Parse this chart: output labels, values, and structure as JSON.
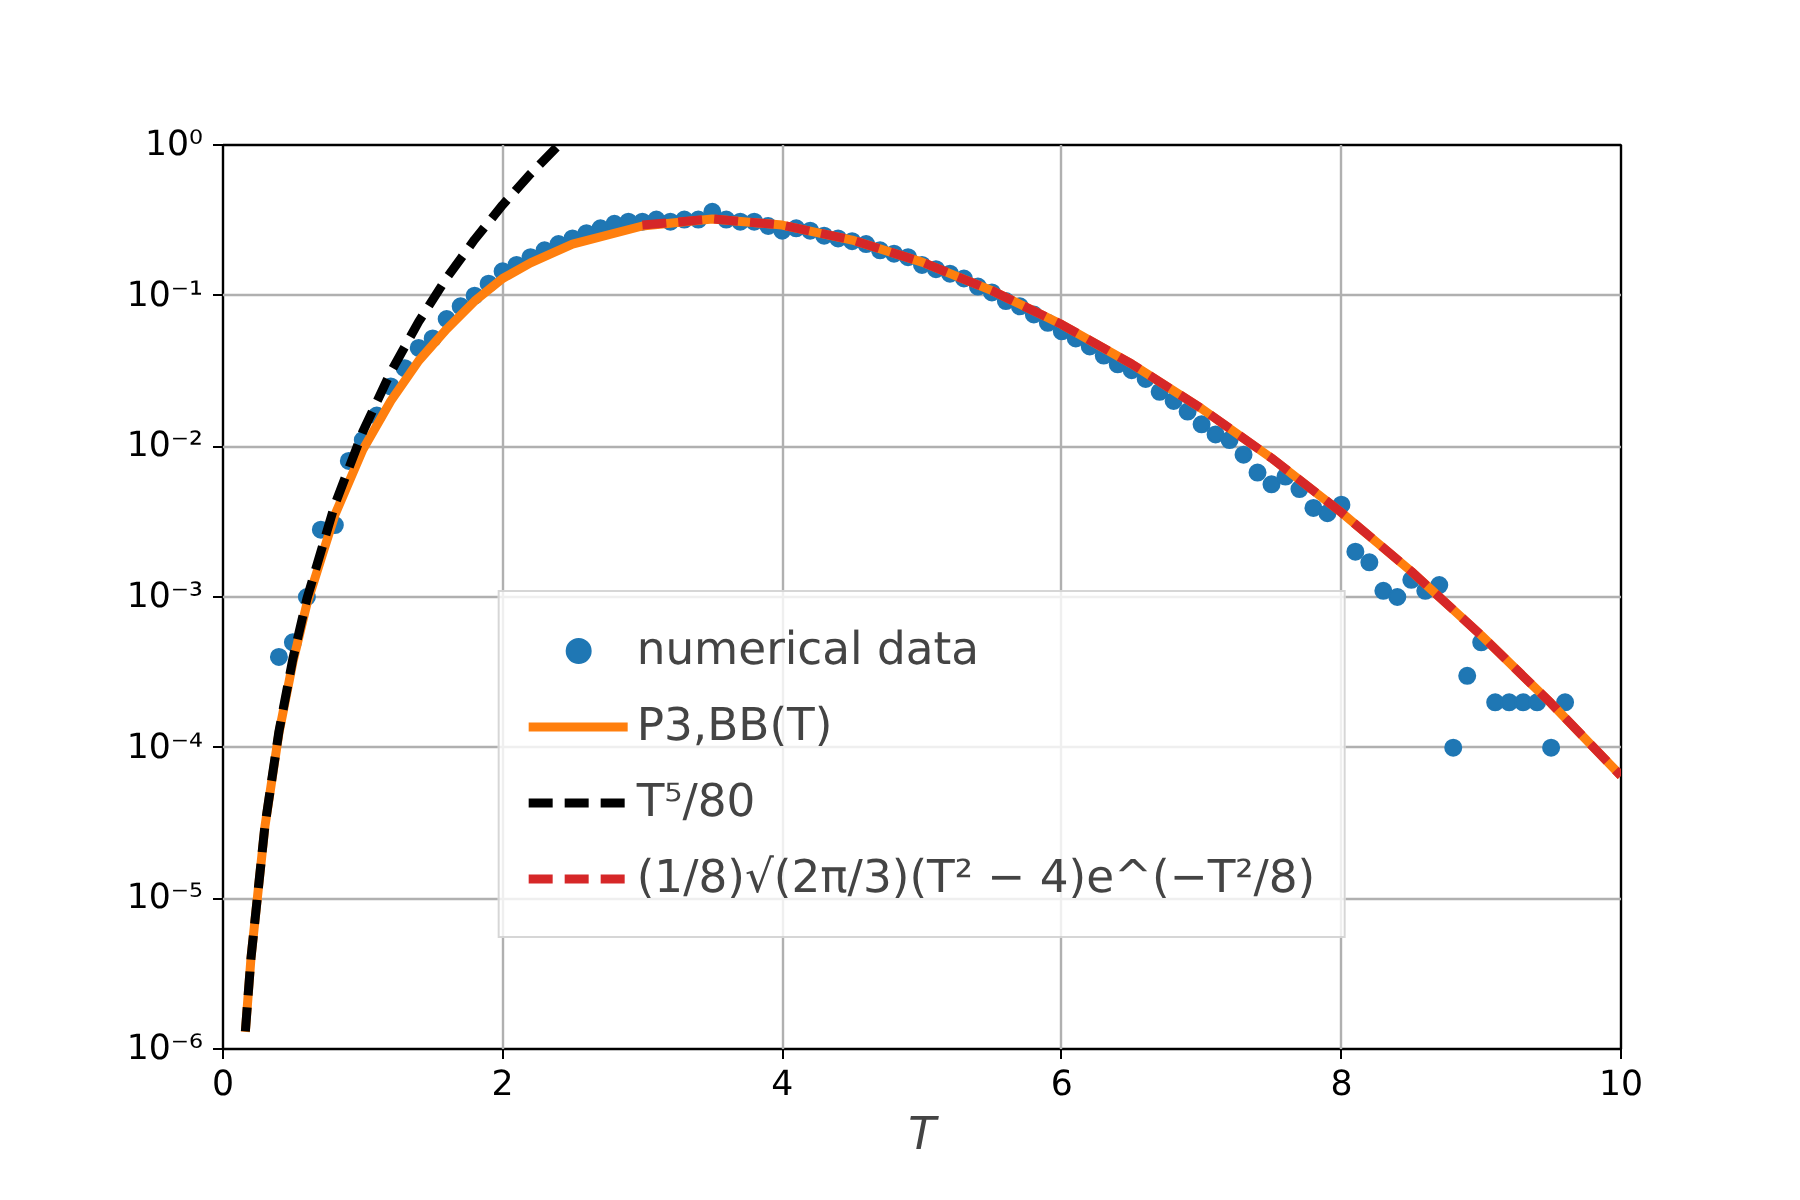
{
  "chart_data": {
    "type": "line",
    "xlabel": "T",
    "log": "y",
    "grid": true,
    "legend": "bottom",
    "xlim": [
      0,
      10
    ],
    "xticks": [
      0,
      2,
      4,
      6,
      8,
      10
    ],
    "ylim": [
      1e-06,
      1
    ],
    "yticks": [
      {
        "value": 1e-06,
        "label": "10⁻⁶"
      },
      {
        "value": 1e-05,
        "label": "10⁻⁵"
      },
      {
        "value": 0.0001,
        "label": "10⁻⁴"
      },
      {
        "value": 0.001,
        "label": "10⁻³"
      },
      {
        "value": 0.01,
        "label": "10⁻²"
      },
      {
        "value": 0.1,
        "label": "10⁻¹"
      },
      {
        "value": 1,
        "label": "10⁰"
      }
    ],
    "series": [
      {
        "name": "numerical data",
        "type": "scatter",
        "marker": "circle",
        "color": "#1f77b4",
        "x": [
          0.4,
          0.5,
          0.6,
          0.7,
          0.8,
          0.9,
          1.0,
          1.1,
          1.2,
          1.3,
          1.4,
          1.5,
          1.6,
          1.7,
          1.8,
          1.9,
          2.0,
          2.1,
          2.2,
          2.3,
          2.4,
          2.5,
          2.6,
          2.7,
          2.8,
          2.9,
          3.0,
          3.1,
          3.2,
          3.3,
          3.4,
          3.5,
          3.6,
          3.7,
          3.8,
          3.9,
          4.0,
          4.1,
          4.2,
          4.3,
          4.4,
          4.5,
          4.6,
          4.7,
          4.8,
          4.9,
          5.0,
          5.1,
          5.2,
          5.3,
          5.4,
          5.5,
          5.6,
          5.7,
          5.8,
          5.9,
          6.0,
          6.1,
          6.2,
          6.3,
          6.4,
          6.5,
          6.6,
          6.7,
          6.8,
          6.9,
          7.0,
          7.1,
          7.2,
          7.3,
          7.4,
          7.5,
          7.6,
          7.7,
          7.8,
          7.9,
          8.0,
          8.1,
          8.2,
          8.3,
          8.4,
          8.5,
          8.6,
          8.7,
          8.8,
          8.9,
          9.0,
          9.1,
          9.2,
          9.3,
          9.4,
          9.5,
          9.6
        ],
        "values": [
          0.0004,
          0.0005,
          0.001,
          0.0028,
          0.003,
          0.008,
          0.011,
          0.016,
          0.025,
          0.033,
          0.045,
          0.052,
          0.07,
          0.085,
          0.1,
          0.12,
          0.145,
          0.16,
          0.18,
          0.2,
          0.22,
          0.24,
          0.26,
          0.28,
          0.3,
          0.31,
          0.31,
          0.32,
          0.31,
          0.32,
          0.32,
          0.36,
          0.32,
          0.31,
          0.31,
          0.29,
          0.27,
          0.28,
          0.27,
          0.25,
          0.24,
          0.23,
          0.22,
          0.2,
          0.19,
          0.18,
          0.16,
          0.15,
          0.14,
          0.13,
          0.115,
          0.105,
          0.092,
          0.085,
          0.075,
          0.066,
          0.058,
          0.052,
          0.046,
          0.04,
          0.035,
          0.032,
          0.028,
          0.023,
          0.02,
          0.017,
          0.014,
          0.012,
          0.011,
          0.0088,
          0.0067,
          0.0056,
          0.0063,
          0.0052,
          0.0039,
          0.0036,
          0.0041,
          0.002,
          0.0017,
          0.0011,
          0.001,
          0.0013,
          0.0011,
          0.0012,
          0.0001,
          0.0003,
          0.0005,
          0.0002,
          0.0002,
          0.0002,
          0.0002,
          0.0001,
          0.0002
        ]
      },
      {
        "name": "P3,BB(T)",
        "line_style": "solid",
        "color": "#ff7f0e",
        "x": [
          0.16,
          0.2,
          0.3,
          0.4,
          0.5,
          0.6,
          0.8,
          1.0,
          1.2,
          1.4,
          1.6,
          1.8,
          2.0,
          2.2,
          2.5,
          3.0,
          3.5,
          4.0,
          4.5,
          5.0,
          5.5,
          6.0,
          6.5,
          7.0,
          7.5,
          8.0,
          8.5,
          9.0,
          9.5,
          10.0
        ],
        "values": [
          1.3e-06,
          4e-06,
          3e-05,
          0.000125,
          0.00037,
          0.0009,
          0.0035,
          0.0095,
          0.02,
          0.037,
          0.06,
          0.092,
          0.13,
          0.165,
          0.22,
          0.29,
          0.323,
          0.294,
          0.234,
          0.167,
          0.108,
          0.0643,
          0.0352,
          0.0178,
          0.00836,
          0.00364,
          0.00148,
          0.000557,
          0.000197,
          6.5e-05
        ]
      },
      {
        "name": "T⁵/80",
        "line_style": "dashed",
        "color": "#000000",
        "x": [
          0.16,
          0.2,
          0.3,
          0.4,
          0.5,
          0.6,
          0.8,
          1.0,
          1.2,
          1.4,
          1.6,
          1.8,
          2.0,
          2.2,
          2.4
        ],
        "values": [
          1.31e-06,
          4e-06,
          3.04e-05,
          0.000128,
          0.00039,
          0.000972,
          0.0041,
          0.0125,
          0.0311,
          0.0672,
          0.131,
          0.236,
          0.4,
          0.644,
          0.995
        ]
      },
      {
        "name": "(1/8)√(2π/3)(T² − 4)e^(−T²/8)",
        "line_style": "dashed",
        "color": "#d62728",
        "x": [
          3.0,
          3.5,
          4.0,
          4.5,
          5.0,
          5.5,
          6.0,
          6.5,
          7.0,
          7.5,
          8.0,
          8.5,
          9.0,
          9.5,
          10.0
        ],
        "values": [
          0.294,
          0.323,
          0.294,
          0.234,
          0.167,
          0.108,
          0.0643,
          0.0352,
          0.0178,
          0.00836,
          0.00364,
          0.00148,
          0.000557,
          0.000197,
          6.5e-05
        ]
      }
    ]
  }
}
